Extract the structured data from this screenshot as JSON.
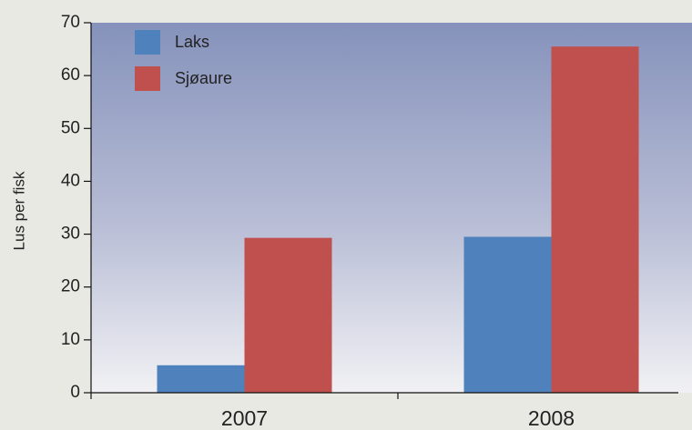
{
  "chart_data": {
    "type": "bar",
    "ylabel": "Lus per fisk",
    "categories": [
      "2007",
      "2008"
    ],
    "series": [
      {
        "name": "Laks",
        "color": "#4f81bd",
        "values": [
          5.2,
          29.5
        ]
      },
      {
        "name": "Sjøaure",
        "color": "#c0504d",
        "values": [
          29.3,
          65.5
        ]
      }
    ],
    "ylim": [
      0,
      70
    ],
    "yticks": [
      0,
      10,
      20,
      30,
      40,
      50,
      60,
      70
    ],
    "legend": "upper left"
  }
}
